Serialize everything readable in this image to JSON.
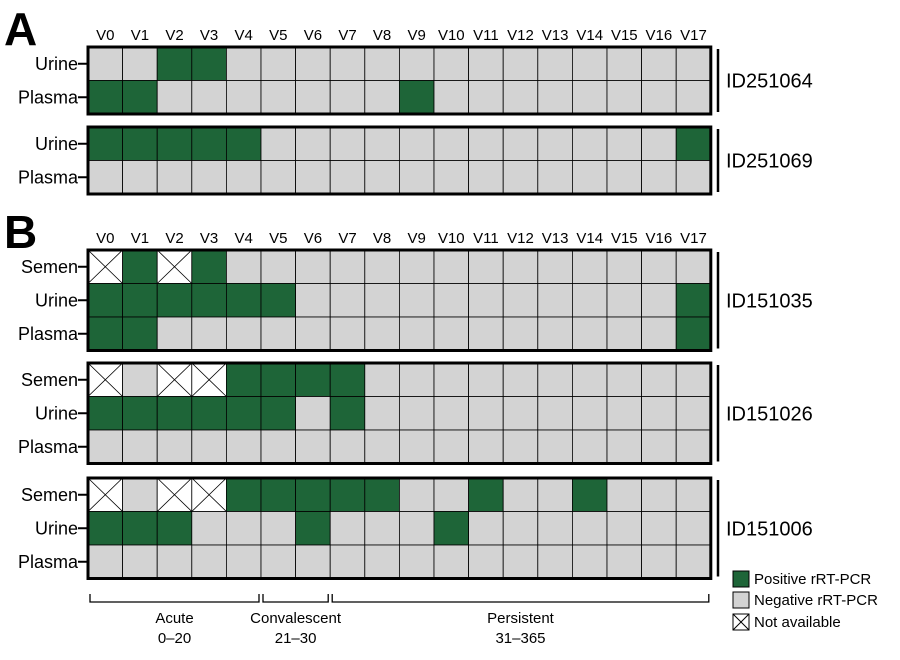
{
  "colors": {
    "positive": "#1e6538",
    "negative": "#d3d3d3",
    "not_available": "#ffffff",
    "border": "#000000"
  },
  "visits": [
    "V0",
    "V1",
    "V2",
    "V3",
    "V4",
    "V5",
    "V6",
    "V7",
    "V8",
    "V9",
    "V10",
    "V11",
    "V12",
    "V13",
    "V14",
    "V15",
    "V16",
    "V17"
  ],
  "panels": [
    {
      "letter": "A",
      "patients": [
        {
          "id": "ID251064",
          "rows": [
            {
              "label": "Urine",
              "cells": "--PP--------------"
            },
            {
              "label": "Plasma",
              "cells": "PP-------P--------"
            }
          ]
        },
        {
          "id": "ID251069",
          "rows": [
            {
              "label": "Urine",
              "cells": "PPPPP------------P"
            },
            {
              "label": "Plasma",
              "cells": "------------------"
            }
          ]
        }
      ]
    },
    {
      "letter": "B",
      "patients": [
        {
          "id": "ID151035",
          "rows": [
            {
              "label": "Semen",
              "cells": "XPXP--------------"
            },
            {
              "label": "Urine",
              "cells": "PPPPPP-----------P"
            },
            {
              "label": "Plasma",
              "cells": "PP---------------P"
            }
          ]
        },
        {
          "id": "ID151026",
          "rows": [
            {
              "label": "Semen",
              "cells": "X-XXPPPP----------"
            },
            {
              "label": "Urine",
              "cells": "PPPPPP-P----------"
            },
            {
              "label": "Plasma",
              "cells": "------------------"
            }
          ]
        },
        {
          "id": "ID151006",
          "rows": [
            {
              "label": "Semen",
              "cells": "X-XXPPPPP--P--P---"
            },
            {
              "label": "Urine",
              "cells": "PPP---P---P-------"
            },
            {
              "label": "Plasma",
              "cells": "------------------"
            }
          ]
        }
      ]
    }
  ],
  "phases": [
    {
      "name": "Acute",
      "range": "0–20",
      "from": 0,
      "to": 4
    },
    {
      "name": "Convalescent",
      "range": "21–30",
      "from": 5,
      "to": 6
    },
    {
      "name": "Persistent",
      "range": "31–365",
      "from": 7,
      "to": 17
    }
  ],
  "legend": [
    {
      "key": "positive",
      "label": "Positive rRT-PCR"
    },
    {
      "key": "negative",
      "label": "Negative rRT-PCR"
    },
    {
      "key": "not_available",
      "label": "Not available"
    }
  ]
}
